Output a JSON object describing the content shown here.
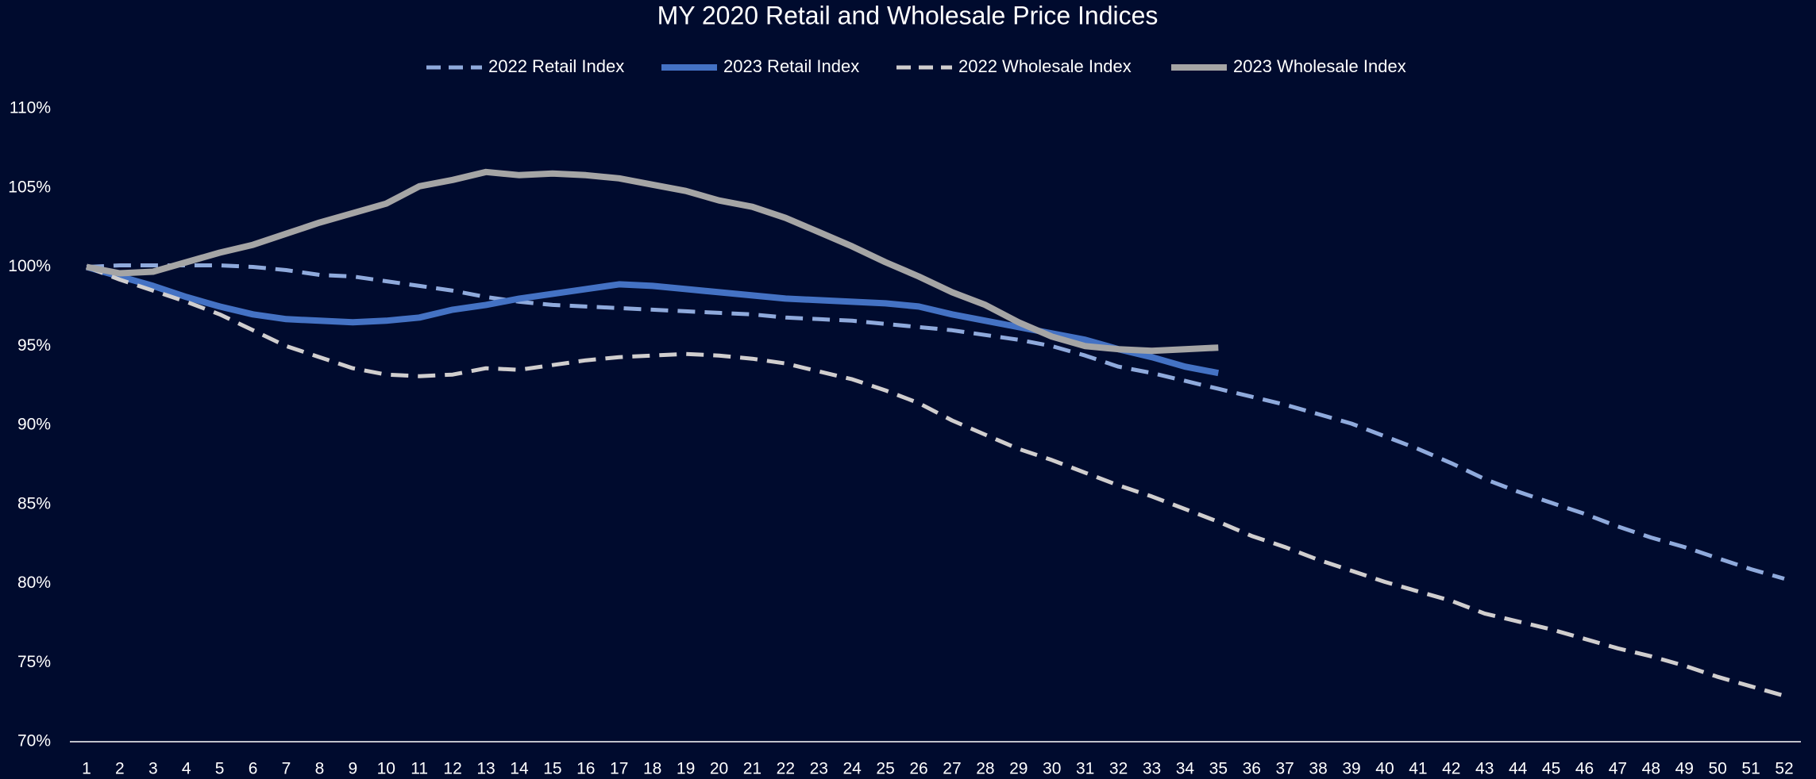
{
  "chart_data": {
    "type": "line",
    "title": "MY 2020 Retail and Wholesale Price Indices",
    "categories": [
      1,
      2,
      3,
      4,
      5,
      6,
      7,
      8,
      9,
      10,
      11,
      12,
      13,
      14,
      15,
      16,
      17,
      18,
      19,
      20,
      21,
      22,
      23,
      24,
      25,
      26,
      27,
      28,
      29,
      30,
      31,
      32,
      33,
      34,
      35,
      36,
      37,
      38,
      39,
      40,
      41,
      42,
      43,
      44,
      45,
      46,
      47,
      48,
      49,
      50,
      51,
      52
    ],
    "series": [
      {
        "name": "2022 Retail Index",
        "color": "#8faadc",
        "dashed": true,
        "values": [
          100,
          100.1,
          100.1,
          100.1,
          100.1,
          100,
          99.8,
          99.5,
          99.4,
          99.1,
          98.8,
          98.5,
          98.1,
          97.8,
          97.6,
          97.5,
          97.4,
          97.3,
          97.2,
          97.1,
          97,
          96.8,
          96.7,
          96.6,
          96.4,
          96.2,
          96,
          95.7,
          95.4,
          95,
          94.4,
          93.7,
          93.3,
          92.8,
          92.3,
          91.8,
          91.3,
          90.7,
          90.1,
          89.3,
          88.5,
          87.6,
          86.6,
          85.8,
          85.1,
          84.4,
          83.6,
          82.9,
          82.3,
          81.6,
          80.9,
          80.3
        ]
      },
      {
        "name": "2023 Retail Index",
        "color": "#4472c4",
        "dashed": false,
        "values": [
          100,
          99.4,
          98.8,
          98.1,
          97.5,
          97,
          96.7,
          96.6,
          96.5,
          96.6,
          96.8,
          97.3,
          97.6,
          98,
          98.3,
          98.6,
          98.9,
          98.8,
          98.6,
          98.4,
          98.2,
          98,
          97.9,
          97.8,
          97.7,
          97.5,
          97,
          96.6,
          96.2,
          95.8,
          95.4,
          94.8,
          94.3,
          93.7,
          93.3,
          null,
          null,
          null,
          null,
          null,
          null,
          null,
          null,
          null,
          null,
          null,
          null,
          null,
          null,
          null,
          null,
          null
        ]
      },
      {
        "name": "2022 Wholesale Index",
        "color": "#d0cece",
        "dashed": true,
        "values": [
          100,
          99.2,
          98.5,
          97.8,
          97,
          96,
          95,
          94.3,
          93.6,
          93.2,
          93.1,
          93.2,
          93.6,
          93.5,
          93.8,
          94.1,
          94.3,
          94.4,
          94.5,
          94.4,
          94.2,
          93.9,
          93.4,
          92.9,
          92.2,
          91.4,
          90.3,
          89.4,
          88.5,
          87.8,
          87,
          86.2,
          85.5,
          84.7,
          83.9,
          83,
          82.3,
          81.5,
          80.8,
          80.1,
          79.5,
          78.9,
          78.1,
          77.6,
          77.1,
          76.5,
          75.9,
          75.4,
          74.8,
          74.1,
          73.5,
          72.9
        ]
      },
      {
        "name": "2023 Wholesale Index",
        "color": "#a5a5a5",
        "dashed": false,
        "values": [
          100,
          99.6,
          99.7,
          100.3,
          100.9,
          101.4,
          102.1,
          102.8,
          103.4,
          104,
          105.1,
          105.5,
          106,
          105.8,
          105.9,
          105.8,
          105.6,
          105.2,
          104.8,
          104.2,
          103.8,
          103.1,
          102.2,
          101.3,
          100.3,
          99.4,
          98.4,
          97.6,
          96.5,
          95.6,
          95,
          94.8,
          94.7,
          94.8,
          94.9,
          null,
          null,
          null,
          null,
          null,
          null,
          null,
          null,
          null,
          null,
          null,
          null,
          null,
          null,
          null,
          null,
          null
        ]
      }
    ],
    "ylim": [
      70,
      110
    ],
    "yticks": [
      {
        "value": 70,
        "label": "70%"
      },
      {
        "value": 75,
        "label": "75%"
      },
      {
        "value": 80,
        "label": "80%"
      },
      {
        "value": 85,
        "label": "85%"
      },
      {
        "value": 90,
        "label": "90%"
      },
      {
        "value": 95,
        "label": "95%"
      },
      {
        "value": 100,
        "label": "100%"
      },
      {
        "value": 105,
        "label": "105%"
      },
      {
        "value": 110,
        "label": "110%"
      }
    ],
    "grid": false,
    "legend": "top"
  }
}
